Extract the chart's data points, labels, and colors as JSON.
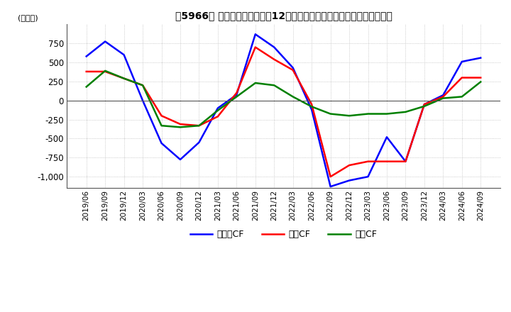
{
  "title": "［5966］ キャッシュフローの12か月移動合計の対前年同期増減額の推移",
  "ylabel": "(百万円)",
  "ylim": [
    -1150,
    1000
  ],
  "yticks": [
    -1000,
    -750,
    -500,
    -250,
    0,
    250,
    500,
    750
  ],
  "dates": [
    "2019/06",
    "2019/09",
    "2019/12",
    "2020/03",
    "2020/06",
    "2020/09",
    "2020/12",
    "2021/03",
    "2021/06",
    "2021/09",
    "2021/12",
    "2022/03",
    "2022/06",
    "2022/09",
    "2022/12",
    "2023/03",
    "2023/06",
    "2023/09",
    "2023/12",
    "2024/03",
    "2024/06",
    "2024/09"
  ],
  "eigyo_cf": [
    380,
    380,
    290,
    200,
    -200,
    -310,
    -330,
    -210,
    100,
    700,
    540,
    400,
    -50,
    -1000,
    -850,
    -800,
    -800,
    -800,
    -50,
    50,
    300,
    300
  ],
  "toshi_cf": [
    180,
    390,
    290,
    200,
    -330,
    -350,
    -330,
    -130,
    50,
    230,
    200,
    50,
    -80,
    -175,
    -200,
    -175,
    -175,
    -150,
    -75,
    30,
    50,
    245
  ],
  "free_cf": [
    580,
    775,
    600,
    0,
    -560,
    -775,
    -550,
    -100,
    75,
    870,
    700,
    430,
    -120,
    -1130,
    -1050,
    -1000,
    -480,
    -800,
    -50,
    70,
    510,
    560
  ],
  "eigyo_color": "#ff0000",
  "toshi_color": "#008000",
  "free_color": "#0000ff",
  "bg_color": "#ffffff",
  "plot_bg_color": "#ffffff",
  "grid_color": "#aaaaaa",
  "legend_labels": [
    "営業CF",
    "投資CF",
    "フリーCF"
  ]
}
